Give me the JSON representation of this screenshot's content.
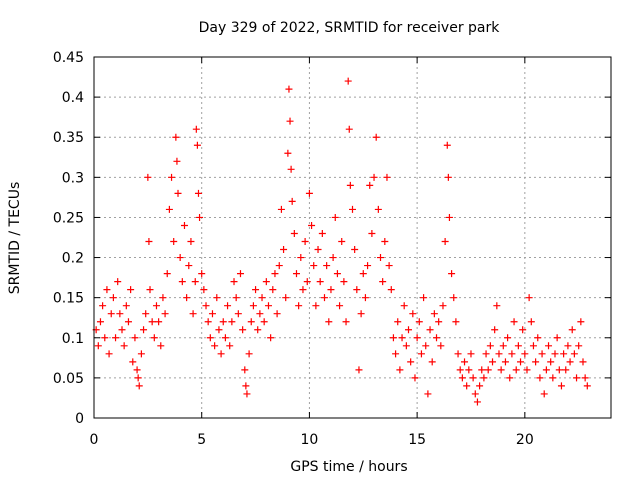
{
  "chart_data": {
    "type": "scatter",
    "title": "Day 329 of 2022, SRMTID for receiver park",
    "xlabel": "GPS time / hours",
    "ylabel": "SRMTID / TECUs",
    "xlim": [
      0,
      24
    ],
    "ylim": [
      0,
      0.45
    ],
    "x_ticks": [
      0,
      5,
      10,
      15,
      20
    ],
    "x_tick_labels": [
      "0",
      "5",
      "10",
      "15",
      "20"
    ],
    "y_ticks": [
      0,
      0.05,
      0.1,
      0.15,
      0.2,
      0.25,
      0.3,
      0.35,
      0.4,
      0.45
    ],
    "y_tick_labels": [
      "0",
      "0.05",
      "0.1",
      "0.15",
      "0.2",
      "0.25",
      "0.3",
      "0.35",
      "0.4",
      "0.45"
    ],
    "grid": true,
    "marker": "+",
    "color": "#ff0000",
    "series": [
      {
        "name": "SRMTID",
        "points": [
          [
            0.1,
            0.11
          ],
          [
            0.2,
            0.09
          ],
          [
            0.3,
            0.12
          ],
          [
            0.4,
            0.14
          ],
          [
            0.5,
            0.1
          ],
          [
            0.6,
            0.16
          ],
          [
            0.7,
            0.08
          ],
          [
            0.8,
            0.13
          ],
          [
            0.9,
            0.15
          ],
          [
            1.0,
            0.1
          ],
          [
            1.1,
            0.17
          ],
          [
            1.2,
            0.13
          ],
          [
            1.3,
            0.11
          ],
          [
            1.4,
            0.09
          ],
          [
            1.5,
            0.14
          ],
          [
            1.6,
            0.12
          ],
          [
            1.7,
            0.16
          ],
          [
            1.8,
            0.07
          ],
          [
            1.9,
            0.1
          ],
          [
            2.0,
            0.06
          ],
          [
            2.05,
            0.05
          ],
          [
            2.1,
            0.04
          ],
          [
            2.2,
            0.08
          ],
          [
            2.3,
            0.11
          ],
          [
            2.4,
            0.13
          ],
          [
            2.5,
            0.3
          ],
          [
            2.55,
            0.22
          ],
          [
            2.6,
            0.16
          ],
          [
            2.7,
            0.12
          ],
          [
            2.8,
            0.1
          ],
          [
            2.9,
            0.14
          ],
          [
            3.0,
            0.12
          ],
          [
            3.1,
            0.09
          ],
          [
            3.2,
            0.15
          ],
          [
            3.3,
            0.13
          ],
          [
            3.4,
            0.18
          ],
          [
            3.5,
            0.26
          ],
          [
            3.6,
            0.3
          ],
          [
            3.7,
            0.22
          ],
          [
            3.8,
            0.35
          ],
          [
            3.85,
            0.32
          ],
          [
            3.9,
            0.28
          ],
          [
            4.0,
            0.2
          ],
          [
            4.1,
            0.17
          ],
          [
            4.2,
            0.24
          ],
          [
            4.3,
            0.15
          ],
          [
            4.4,
            0.19
          ],
          [
            4.5,
            0.22
          ],
          [
            4.6,
            0.13
          ],
          [
            4.7,
            0.17
          ],
          [
            4.75,
            0.36
          ],
          [
            4.8,
            0.34
          ],
          [
            4.85,
            0.28
          ],
          [
            4.9,
            0.25
          ],
          [
            5.0,
            0.18
          ],
          [
            5.1,
            0.16
          ],
          [
            5.2,
            0.14
          ],
          [
            5.3,
            0.12
          ],
          [
            5.4,
            0.1
          ],
          [
            5.5,
            0.13
          ],
          [
            5.6,
            0.09
          ],
          [
            5.7,
            0.15
          ],
          [
            5.8,
            0.11
          ],
          [
            5.9,
            0.08
          ],
          [
            6.0,
            0.12
          ],
          [
            6.1,
            0.1
          ],
          [
            6.2,
            0.14
          ],
          [
            6.3,
            0.09
          ],
          [
            6.4,
            0.12
          ],
          [
            6.5,
            0.17
          ],
          [
            6.6,
            0.15
          ],
          [
            6.7,
            0.13
          ],
          [
            6.8,
            0.18
          ],
          [
            6.9,
            0.11
          ],
          [
            7.0,
            0.06
          ],
          [
            7.05,
            0.04
          ],
          [
            7.1,
            0.03
          ],
          [
            7.2,
            0.08
          ],
          [
            7.3,
            0.12
          ],
          [
            7.4,
            0.14
          ],
          [
            7.5,
            0.16
          ],
          [
            7.6,
            0.11
          ],
          [
            7.7,
            0.13
          ],
          [
            7.8,
            0.15
          ],
          [
            7.9,
            0.12
          ],
          [
            8.0,
            0.17
          ],
          [
            8.1,
            0.14
          ],
          [
            8.2,
            0.1
          ],
          [
            8.3,
            0.16
          ],
          [
            8.4,
            0.18
          ],
          [
            8.5,
            0.13
          ],
          [
            8.6,
            0.19
          ],
          [
            8.7,
            0.26
          ],
          [
            8.8,
            0.21
          ],
          [
            8.9,
            0.15
          ],
          [
            9.0,
            0.33
          ],
          [
            9.05,
            0.41
          ],
          [
            9.1,
            0.37
          ],
          [
            9.15,
            0.31
          ],
          [
            9.2,
            0.27
          ],
          [
            9.3,
            0.23
          ],
          [
            9.4,
            0.18
          ],
          [
            9.5,
            0.14
          ],
          [
            9.6,
            0.2
          ],
          [
            9.7,
            0.16
          ],
          [
            9.8,
            0.22
          ],
          [
            9.9,
            0.17
          ],
          [
            10.0,
            0.28
          ],
          [
            10.1,
            0.24
          ],
          [
            10.2,
            0.19
          ],
          [
            10.3,
            0.14
          ],
          [
            10.4,
            0.21
          ],
          [
            10.5,
            0.17
          ],
          [
            10.6,
            0.23
          ],
          [
            10.7,
            0.15
          ],
          [
            10.8,
            0.19
          ],
          [
            10.9,
            0.12
          ],
          [
            11.0,
            0.16
          ],
          [
            11.1,
            0.2
          ],
          [
            11.2,
            0.25
          ],
          [
            11.3,
            0.18
          ],
          [
            11.4,
            0.14
          ],
          [
            11.5,
            0.22
          ],
          [
            11.6,
            0.17
          ],
          [
            11.7,
            0.12
          ],
          [
            11.8,
            0.42
          ],
          [
            11.85,
            0.36
          ],
          [
            11.9,
            0.29
          ],
          [
            12.0,
            0.26
          ],
          [
            12.1,
            0.21
          ],
          [
            12.2,
            0.16
          ],
          [
            12.3,
            0.06
          ],
          [
            12.4,
            0.13
          ],
          [
            12.5,
            0.18
          ],
          [
            12.6,
            0.15
          ],
          [
            12.7,
            0.19
          ],
          [
            12.8,
            0.29
          ],
          [
            12.9,
            0.23
          ],
          [
            13.0,
            0.3
          ],
          [
            13.1,
            0.35
          ],
          [
            13.2,
            0.26
          ],
          [
            13.3,
            0.2
          ],
          [
            13.4,
            0.17
          ],
          [
            13.5,
            0.22
          ],
          [
            13.6,
            0.3
          ],
          [
            13.7,
            0.19
          ],
          [
            13.8,
            0.16
          ],
          [
            13.9,
            0.1
          ],
          [
            14.0,
            0.08
          ],
          [
            14.1,
            0.12
          ],
          [
            14.2,
            0.06
          ],
          [
            14.3,
            0.1
          ],
          [
            14.4,
            0.14
          ],
          [
            14.5,
            0.09
          ],
          [
            14.6,
            0.11
          ],
          [
            14.7,
            0.07
          ],
          [
            14.8,
            0.13
          ],
          [
            14.9,
            0.05
          ],
          [
            15.0,
            0.1
          ],
          [
            15.1,
            0.12
          ],
          [
            15.2,
            0.08
          ],
          [
            15.3,
            0.15
          ],
          [
            15.4,
            0.09
          ],
          [
            15.5,
            0.03
          ],
          [
            15.6,
            0.11
          ],
          [
            15.7,
            0.07
          ],
          [
            15.8,
            0.13
          ],
          [
            15.9,
            0.1
          ],
          [
            16.0,
            0.12
          ],
          [
            16.1,
            0.09
          ],
          [
            16.2,
            0.14
          ],
          [
            16.3,
            0.22
          ],
          [
            16.4,
            0.34
          ],
          [
            16.45,
            0.3
          ],
          [
            16.5,
            0.25
          ],
          [
            16.6,
            0.18
          ],
          [
            16.7,
            0.15
          ],
          [
            16.8,
            0.12
          ],
          [
            16.9,
            0.08
          ],
          [
            17.0,
            0.06
          ],
          [
            17.1,
            0.05
          ],
          [
            17.2,
            0.07
          ],
          [
            17.3,
            0.04
          ],
          [
            17.4,
            0.06
          ],
          [
            17.5,
            0.08
          ],
          [
            17.6,
            0.05
          ],
          [
            17.7,
            0.03
          ],
          [
            17.8,
            0.02
          ],
          [
            17.9,
            0.04
          ],
          [
            18.0,
            0.06
          ],
          [
            18.1,
            0.05
          ],
          [
            18.2,
            0.08
          ],
          [
            18.3,
            0.06
          ],
          [
            18.4,
            0.09
          ],
          [
            18.5,
            0.07
          ],
          [
            18.6,
            0.11
          ],
          [
            18.7,
            0.14
          ],
          [
            18.8,
            0.08
          ],
          [
            18.9,
            0.06
          ],
          [
            19.0,
            0.09
          ],
          [
            19.1,
            0.07
          ],
          [
            19.2,
            0.1
          ],
          [
            19.3,
            0.05
          ],
          [
            19.4,
            0.08
          ],
          [
            19.5,
            0.12
          ],
          [
            19.6,
            0.06
          ],
          [
            19.7,
            0.09
          ],
          [
            19.8,
            0.07
          ],
          [
            19.9,
            0.11
          ],
          [
            20.0,
            0.08
          ],
          [
            20.1,
            0.06
          ],
          [
            20.2,
            0.15
          ],
          [
            20.3,
            0.12
          ],
          [
            20.4,
            0.09
          ],
          [
            20.5,
            0.07
          ],
          [
            20.6,
            0.1
          ],
          [
            20.7,
            0.05
          ],
          [
            20.8,
            0.08
          ],
          [
            20.9,
            0.03
          ],
          [
            21.0,
            0.06
          ],
          [
            21.1,
            0.09
          ],
          [
            21.2,
            0.07
          ],
          [
            21.3,
            0.05
          ],
          [
            21.4,
            0.08
          ],
          [
            21.5,
            0.1
          ],
          [
            21.6,
            0.06
          ],
          [
            21.7,
            0.04
          ],
          [
            21.8,
            0.08
          ],
          [
            21.9,
            0.06
          ],
          [
            22.0,
            0.09
          ],
          [
            22.1,
            0.07
          ],
          [
            22.2,
            0.11
          ],
          [
            22.3,
            0.08
          ],
          [
            22.4,
            0.05
          ],
          [
            22.5,
            0.09
          ],
          [
            22.6,
            0.12
          ],
          [
            22.7,
            0.07
          ],
          [
            22.8,
            0.05
          ],
          [
            22.9,
            0.04
          ]
        ]
      }
    ]
  }
}
